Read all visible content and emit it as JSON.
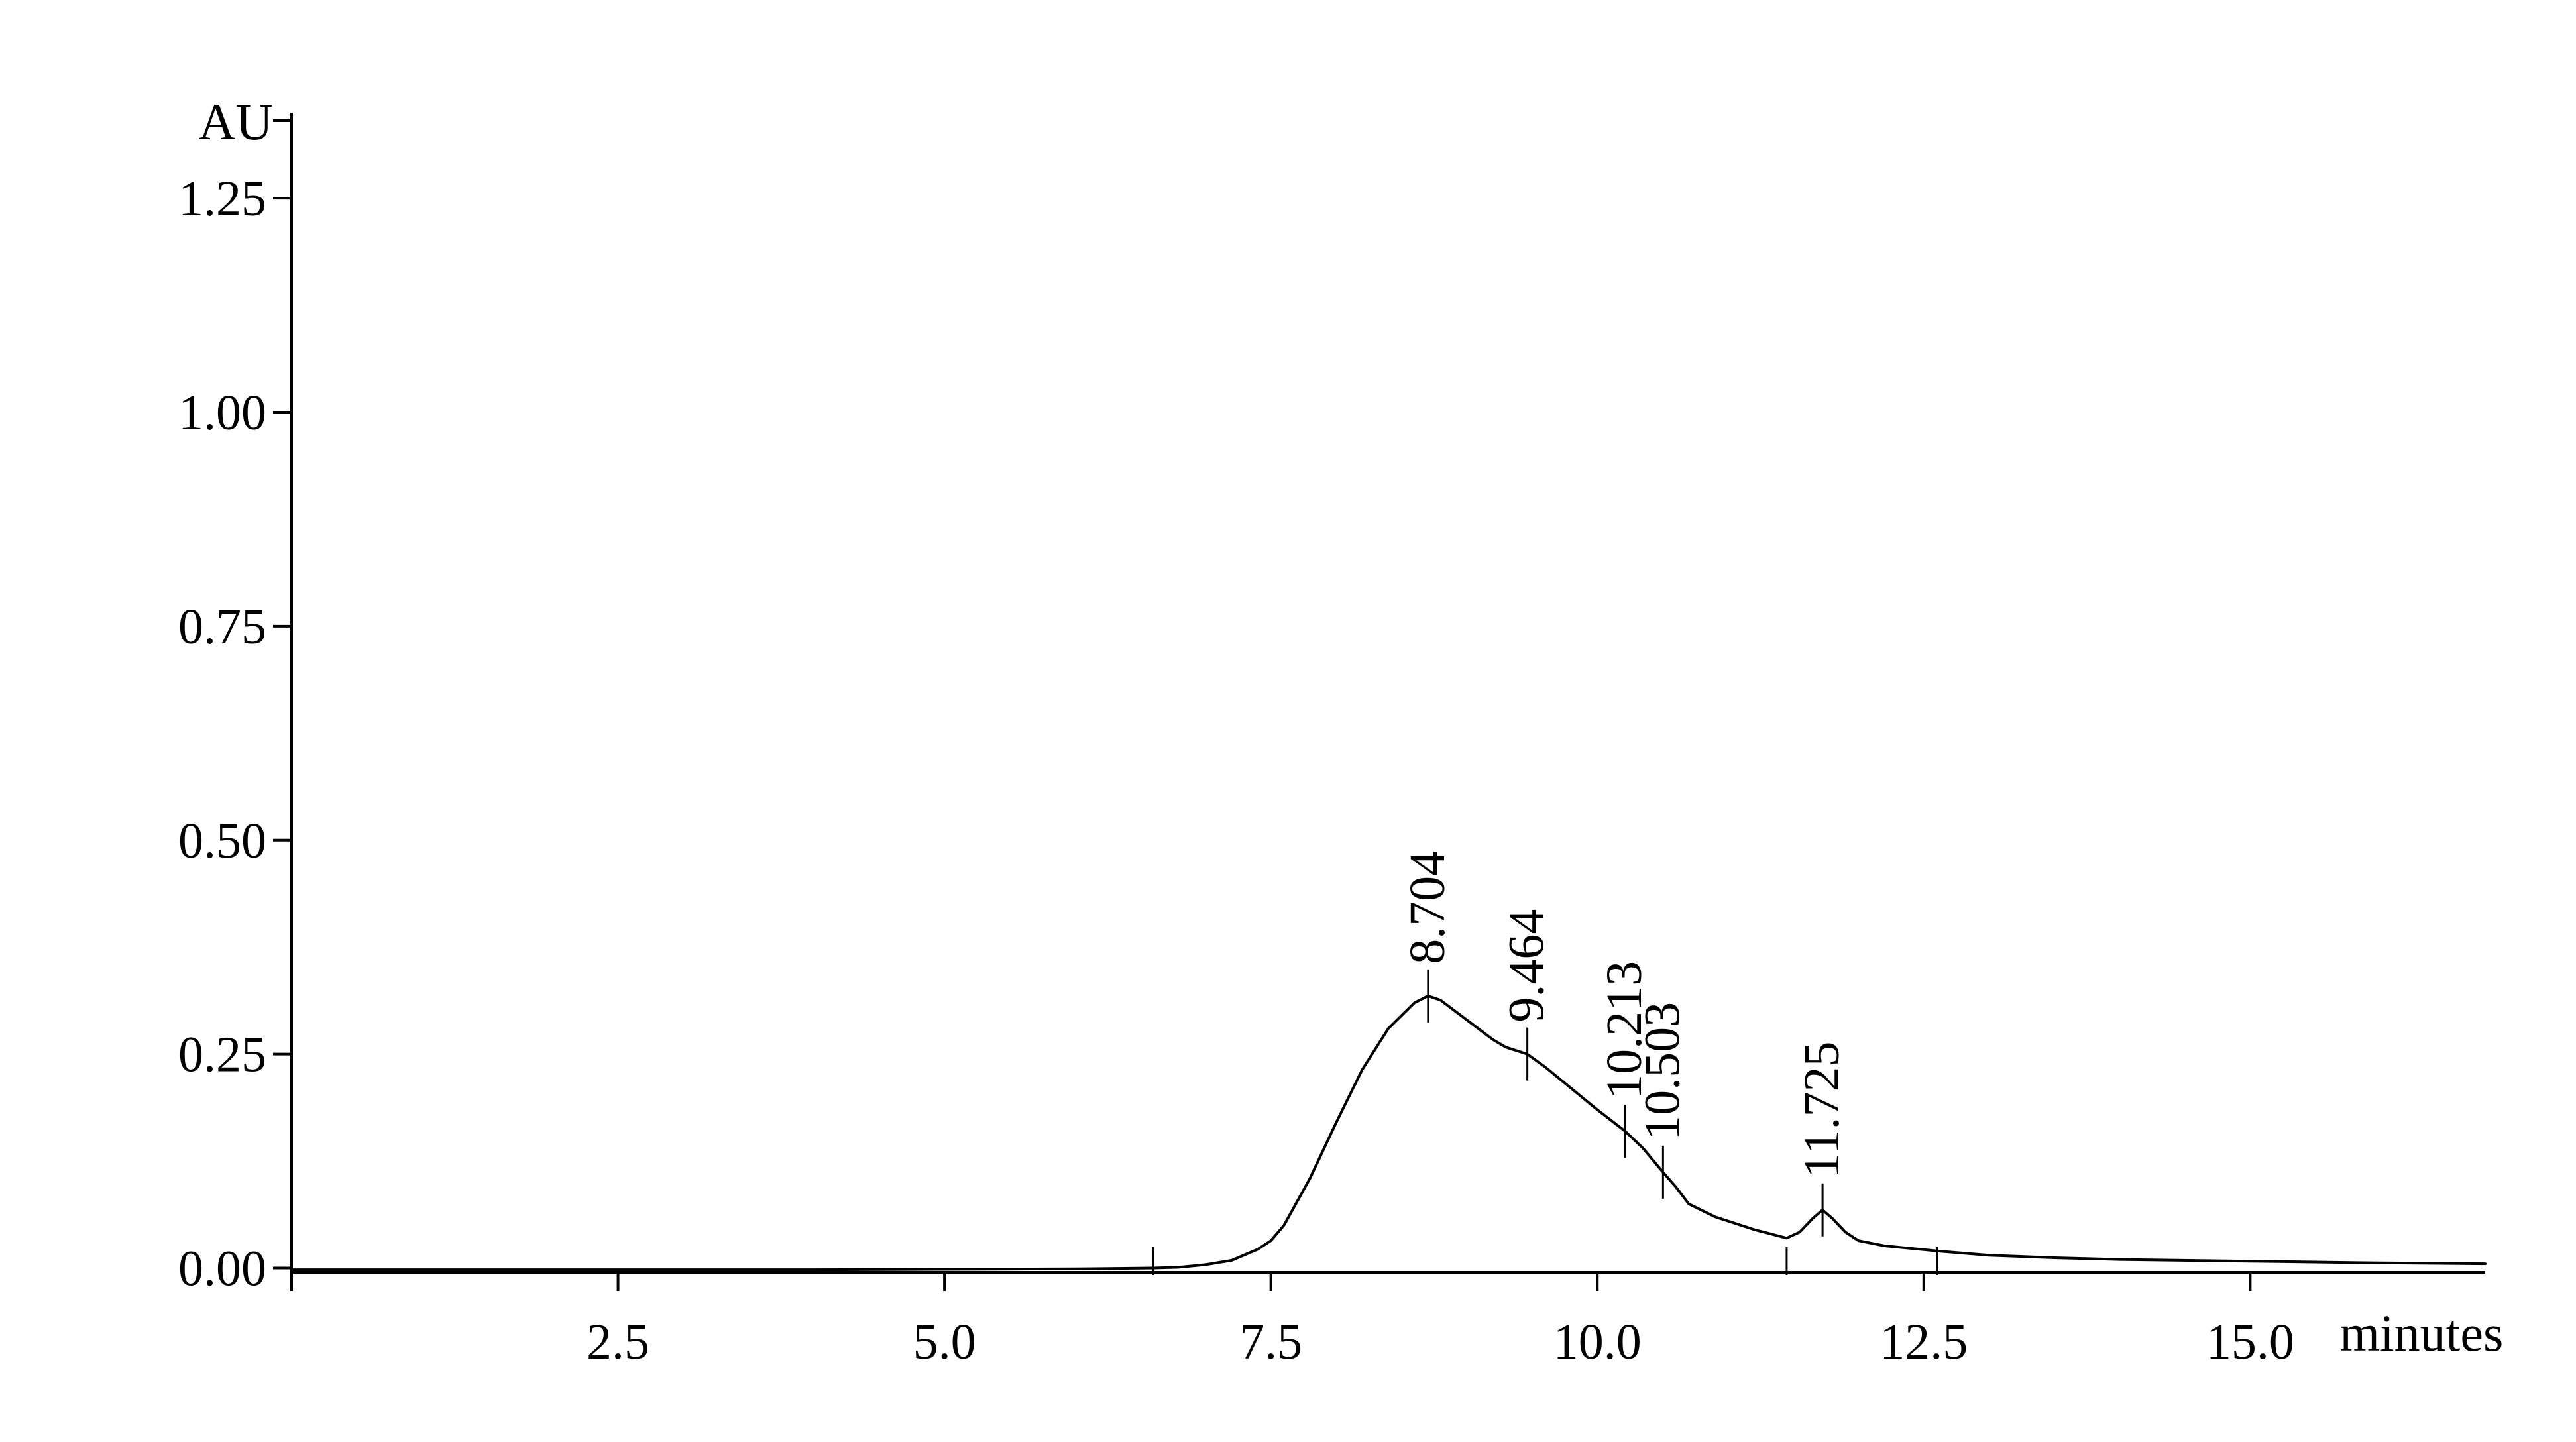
{
  "chart_data": {
    "type": "line",
    "title": "",
    "xlabel": "minutes",
    "ylabel": "AU",
    "xlim": [
      0,
      16.8
    ],
    "ylim": [
      -0.005,
      1.35
    ],
    "grid": false,
    "legend": "none",
    "x_ticks": [
      {
        "value": 2.5,
        "label": "2.5"
      },
      {
        "value": 5.0,
        "label": "5.0"
      },
      {
        "value": 7.5,
        "label": "7.5"
      },
      {
        "value": 10.0,
        "label": "10.0"
      },
      {
        "value": 12.5,
        "label": "12.5"
      },
      {
        "value": 15.0,
        "label": "15.0"
      }
    ],
    "y_ticks": [
      {
        "value": 0.0,
        "label": "0.00"
      },
      {
        "value": 0.25,
        "label": "0.25"
      },
      {
        "value": 0.5,
        "label": "0.50"
      },
      {
        "value": 0.75,
        "label": "0.75"
      },
      {
        "value": 1.0,
        "label": "1.00"
      },
      {
        "value": 1.25,
        "label": "1.25"
      }
    ],
    "series": [
      {
        "color": "#000000",
        "x": [
          0.0,
          2.0,
          4.0,
          6.0,
          6.6,
          6.8,
          7.0,
          7.2,
          7.4,
          7.5,
          7.6,
          7.8,
          8.0,
          8.2,
          8.4,
          8.6,
          8.704,
          8.8,
          9.0,
          9.2,
          9.3,
          9.464,
          9.6,
          9.8,
          10.0,
          10.213,
          10.35,
          10.503,
          10.6,
          10.7,
          10.9,
          11.2,
          11.45,
          11.55,
          11.65,
          11.725,
          11.8,
          11.9,
          12.0,
          12.2,
          12.6,
          13.0,
          13.5,
          14.0,
          15.0,
          16.0,
          16.8
        ],
        "y": [
          -0.002,
          -0.002,
          -0.002,
          -0.001,
          0.0,
          0.001,
          0.004,
          0.009,
          0.022,
          0.032,
          0.05,
          0.105,
          0.17,
          0.232,
          0.28,
          0.31,
          0.318,
          0.313,
          0.29,
          0.267,
          0.258,
          0.25,
          0.235,
          0.21,
          0.185,
          0.16,
          0.14,
          0.112,
          0.095,
          0.075,
          0.06,
          0.045,
          0.035,
          0.042,
          0.058,
          0.068,
          0.058,
          0.042,
          0.032,
          0.026,
          0.02,
          0.015,
          0.012,
          0.01,
          0.008,
          0.006,
          0.005
        ]
      }
    ],
    "annotations": [
      {
        "x": 8.704,
        "y": 0.318,
        "text": "8.704"
      },
      {
        "x": 9.464,
        "y": 0.25,
        "text": "9.464"
      },
      {
        "x": 10.213,
        "y": 0.16,
        "text": "10.213"
      },
      {
        "x": 10.503,
        "y": 0.112,
        "text": "10.503"
      },
      {
        "x": 11.725,
        "y": 0.068,
        "text": "11.725"
      }
    ]
  }
}
